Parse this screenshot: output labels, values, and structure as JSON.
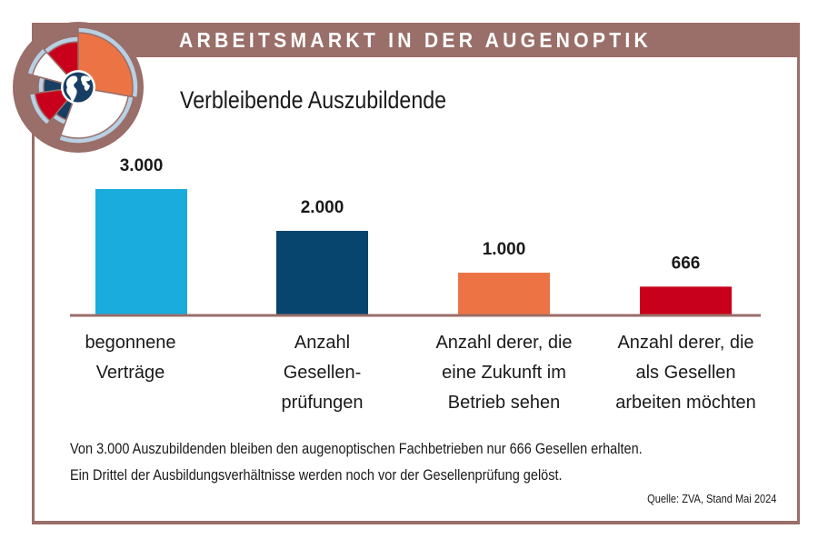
{
  "header": {
    "title": "ARBEITSMARKT IN DER AUGENOPTIK",
    "band_color": "#9a6e69"
  },
  "emblem": {
    "icon": "globe-icon",
    "segment_colors": [
      "#ec7444",
      "#c9001c",
      "#173f63",
      "#ffffff",
      "#b8d0e4"
    ]
  },
  "chart_data": {
    "type": "bar",
    "title": "Verbleibende Auszubildende",
    "xlabel": "",
    "ylabel": "",
    "ylim": [
      0,
      3000
    ],
    "grid": false,
    "categories": [
      [
        "begonnene",
        "Verträge"
      ],
      [
        "Anzahl",
        "Gesellen-",
        "prüfungen"
      ],
      [
        "Anzahl derer, die",
        "eine Zukunft im",
        "Betrieb sehen"
      ],
      [
        "Anzahl derer, die",
        "als Gesellen",
        "arbeiten möchten"
      ]
    ],
    "values": [
      3000,
      2000,
      1000,
      666
    ],
    "value_labels": [
      "3.000",
      "2.000",
      "1.000",
      "666"
    ],
    "colors": [
      "#1aacdc",
      "#07456e",
      "#ec7444",
      "#c9001c"
    ],
    "axis_color": "#9a6e69"
  },
  "footnote": {
    "line1": "Von 3.000 Auszubildenden bleiben den augenoptischen Fachbetrieben nur 666 Gesellen erhalten.",
    "line2": "Ein Drittel der Ausbildungsverhältnisse werden noch vor der Gesellenprüfung gelöst.",
    "source": "Quelle: ZVA, Stand Mai 2024"
  }
}
